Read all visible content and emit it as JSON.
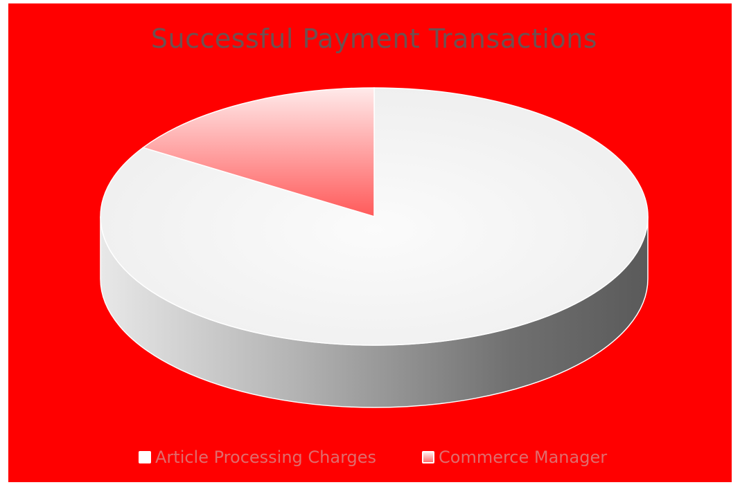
{
  "chart_data": {
    "type": "pie",
    "style": "3d",
    "title": "Successful Payment Transactions",
    "categories": [
      "Article Processing Charges",
      "Commerce Manager"
    ],
    "values": [
      0.84,
      0.16
    ],
    "value_unit": "fraction of total",
    "legend_position": "bottom",
    "colors": {
      "background": "#ff0000",
      "title": "#6e5151",
      "legend_text": "#e06c6c",
      "slice_article_processing_charges": "#f4f4f4",
      "slice_commerce_manager": "#ff6e6e"
    }
  }
}
